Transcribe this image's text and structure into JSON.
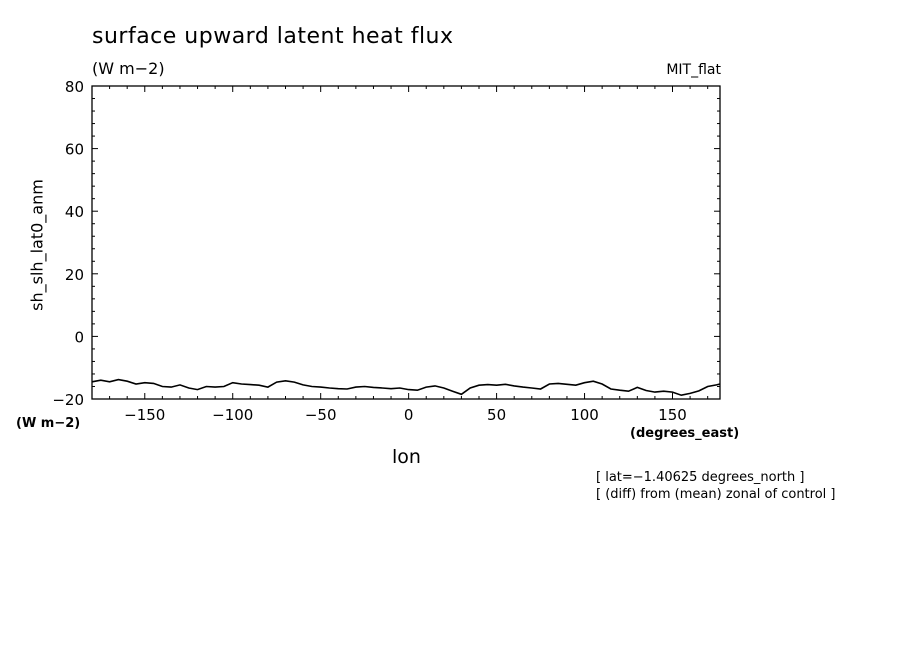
{
  "chart_data": {
    "type": "line",
    "title": "surface upward latent heat flux",
    "subtitle": "(W m−2)",
    "model_label": "MIT_flat",
    "ylabel": "sh_slh_lat0_anm",
    "ylabel_units": "(W m−2)",
    "xlabel": "lon",
    "xlabel_units": "(degrees_east)",
    "annotations": [
      "[ lat=−1.40625 degrees_north ]",
      "[ (diff) from (mean) zonal of control ]"
    ],
    "xlim": [
      -180,
      177
    ],
    "ylim": [
      -20,
      80
    ],
    "xticks": [
      -150,
      -100,
      -50,
      0,
      50,
      100,
      150
    ],
    "xtick_labels": [
      "−150",
      "−100",
      "−50",
      "0",
      "50",
      "100",
      "150"
    ],
    "yticks": [
      -20,
      0,
      20,
      40,
      60,
      80
    ],
    "ytick_labels": [
      "−20",
      "0",
      "20",
      "40",
      "60",
      "80"
    ],
    "grid": false,
    "legend": "none",
    "series": [
      {
        "x": [
          -180,
          -175,
          -170,
          -165,
          -160,
          -155,
          -150,
          -145,
          -140,
          -135,
          -130,
          -125,
          -120,
          -115,
          -110,
          -105,
          -100,
          -95,
          -90,
          -85,
          -80,
          -75,
          -70,
          -65,
          -60,
          -55,
          -50,
          -45,
          -40,
          -35,
          -30,
          -25,
          -20,
          -15,
          -10,
          -5,
          0,
          5,
          10,
          15,
          20,
          25,
          30,
          35,
          40,
          45,
          50,
          55,
          60,
          65,
          70,
          75,
          80,
          85,
          90,
          95,
          100,
          105,
          110,
          115,
          120,
          125,
          130,
          135,
          140,
          145,
          150,
          155,
          160,
          165,
          170,
          175,
          177
        ],
        "values": [
          -14.5,
          -14.0,
          -14.5,
          -13.8,
          -14.3,
          -15.2,
          -14.8,
          -15.0,
          -16.0,
          -16.2,
          -15.5,
          -16.5,
          -17.0,
          -16.0,
          -16.2,
          -16.0,
          -14.8,
          -15.2,
          -15.4,
          -15.6,
          -16.2,
          -14.6,
          -14.2,
          -14.6,
          -15.5,
          -16.0,
          -16.2,
          -16.5,
          -16.7,
          -16.8,
          -16.2,
          -16.0,
          -16.3,
          -16.5,
          -16.7,
          -16.5,
          -17.0,
          -17.2,
          -16.2,
          -15.8,
          -16.5,
          -17.5,
          -18.5,
          -16.5,
          -15.6,
          -15.4,
          -15.6,
          -15.3,
          -15.8,
          -16.2,
          -16.5,
          -16.8,
          -15.2,
          -15.0,
          -15.3,
          -15.6,
          -14.8,
          -14.3,
          -15.2,
          -16.8,
          -17.2,
          -17.5,
          -16.3,
          -17.3,
          -17.8,
          -17.5,
          -17.8,
          -18.8,
          -18.2,
          -17.4,
          -16.0,
          -15.5,
          -15.2
        ]
      }
    ]
  }
}
